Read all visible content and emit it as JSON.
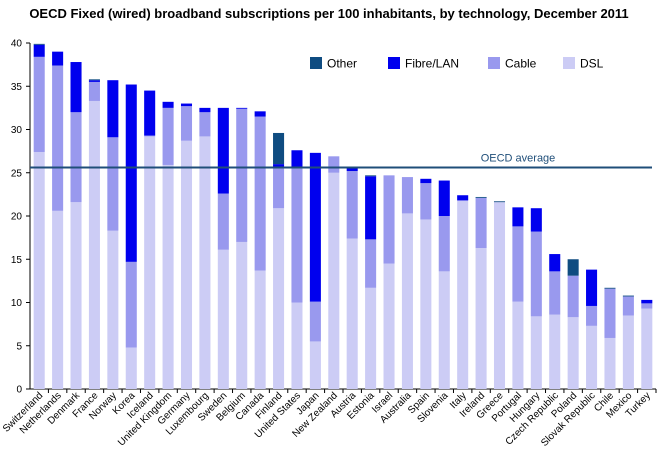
{
  "chart_data": {
    "type": "bar",
    "stacked": true,
    "title": "OECD Fixed (wired) broadband subscriptions per 100 inhabitants, by technology, December 2011",
    "ylim": [
      0,
      40
    ],
    "yticks": [
      0,
      5,
      10,
      15,
      20,
      25,
      30,
      35,
      40
    ],
    "grid": false,
    "legend_position": "top-right",
    "categories": [
      "Switzerland",
      "Netherlands",
      "Denmark",
      "France",
      "Norway",
      "Korea",
      "Iceland",
      "United Kingdom",
      "Germany",
      "Luxembourg",
      "Sweden",
      "Belgium",
      "Canada",
      "Finland",
      "United States",
      "Japan",
      "New Zealand",
      "Austria",
      "Estonia",
      "Israel",
      "Australia",
      "Spain",
      "Slovenia",
      "Italy",
      "Ireland",
      "Greece",
      "Portugal",
      "Hungary",
      "Czech Republic",
      "Poland",
      "Slovak Republic",
      "Chile",
      "Mexico",
      "Turkey"
    ],
    "series": [
      {
        "name": "DSL",
        "color": "#CCCCF5",
        "values": [
          27.4,
          20.6,
          21.6,
          33.3,
          18.3,
          4.8,
          29.2,
          25.9,
          28.7,
          29.2,
          16.1,
          17.0,
          13.7,
          20.9,
          10.0,
          5.5,
          25.0,
          17.4,
          11.7,
          14.5,
          20.3,
          19.6,
          13.6,
          21.8,
          16.3,
          21.6,
          10.1,
          8.4,
          8.6,
          8.3,
          7.3,
          5.9,
          8.5,
          9.3
        ]
      },
      {
        "name": "Cable",
        "color": "#9999EE",
        "values": [
          11.0,
          16.8,
          10.4,
          2.2,
          10.8,
          9.9,
          0.1,
          6.6,
          4.0,
          2.8,
          6.5,
          15.4,
          17.8,
          4.6,
          15.7,
          4.6,
          1.9,
          7.8,
          5.6,
          10.2,
          4.2,
          4.2,
          6.4,
          0.0,
          5.8,
          0.0,
          8.7,
          9.8,
          5.0,
          4.8,
          2.3,
          5.7,
          2.2,
          0.6
        ]
      },
      {
        "name": "Fibre/LAN",
        "color": "#0000EE",
        "values": [
          1.4,
          1.6,
          5.8,
          0.2,
          6.6,
          20.5,
          5.2,
          0.7,
          0.3,
          0.5,
          9.9,
          0.1,
          0.6,
          0.5,
          1.9,
          17.2,
          0.0,
          0.3,
          7.3,
          0.0,
          0.0,
          0.5,
          4.1,
          0.6,
          0.0,
          0.0,
          2.2,
          2.7,
          2.0,
          0.0,
          4.2,
          0.0,
          0.0,
          0.4
        ]
      },
      {
        "name": "Other",
        "color": "#0F4C81",
        "values": [
          0.1,
          0.0,
          0.0,
          0.1,
          0.0,
          0.0,
          0.0,
          0.0,
          0.0,
          0.0,
          0.0,
          0.0,
          0.0,
          3.6,
          0.0,
          0.0,
          0.0,
          0.0,
          0.1,
          0.0,
          0.0,
          0.0,
          0.0,
          0.0,
          0.1,
          0.1,
          0.0,
          0.0,
          0.0,
          1.9,
          0.0,
          0.1,
          0.1,
          0.0
        ]
      }
    ],
    "reference_line": {
      "label": "OECD average",
      "value": 25.6,
      "color": "#1F4E79"
    }
  }
}
